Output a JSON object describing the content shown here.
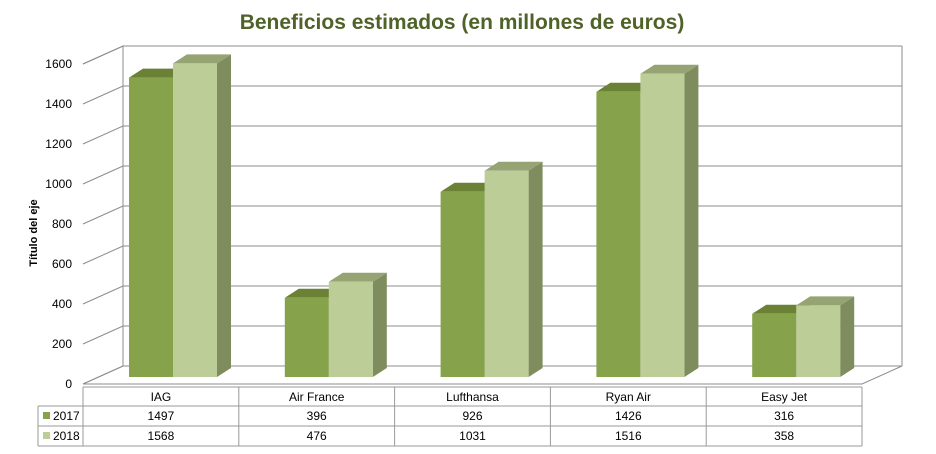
{
  "chart_data": {
    "type": "bar",
    "title": "Beneficios estimados (en millones de euros)",
    "xlabel": "",
    "ylabel": "Título del eje",
    "ylim": [
      0,
      1600
    ],
    "yticks": [
      0,
      200,
      400,
      600,
      800,
      1000,
      1200,
      1400,
      1600
    ],
    "ytick_labels": [
      "0",
      "200",
      "400",
      "600",
      "800",
      "1000",
      "1200",
      "1400",
      "1600"
    ],
    "grid": true,
    "legend": "data-table",
    "categories": [
      "IAG",
      "Air France",
      "Lufthansa",
      "Ryan Air",
      "Easy Jet"
    ],
    "series": [
      {
        "name": "2017",
        "values": [
          1497,
          396,
          926,
          1426,
          316
        ],
        "labels": [
          "1497",
          "396",
          "926",
          "1426",
          "316"
        ]
      },
      {
        "name": "2018",
        "values": [
          1568,
          476,
          1031,
          1516,
          358
        ],
        "labels": [
          "1568",
          "476",
          "1031",
          "1516",
          "358"
        ]
      }
    ]
  },
  "colors": {
    "title": "#4f6228",
    "series_2017": {
      "front": "#86a34c",
      "top": "#6b8135",
      "side": "#5f7430"
    },
    "series_2018": {
      "front": "#bccd97",
      "top": "#96a474",
      "side": "#7f8c5e"
    },
    "grid": "#8c8c8c",
    "axis_text": "#000000"
  }
}
